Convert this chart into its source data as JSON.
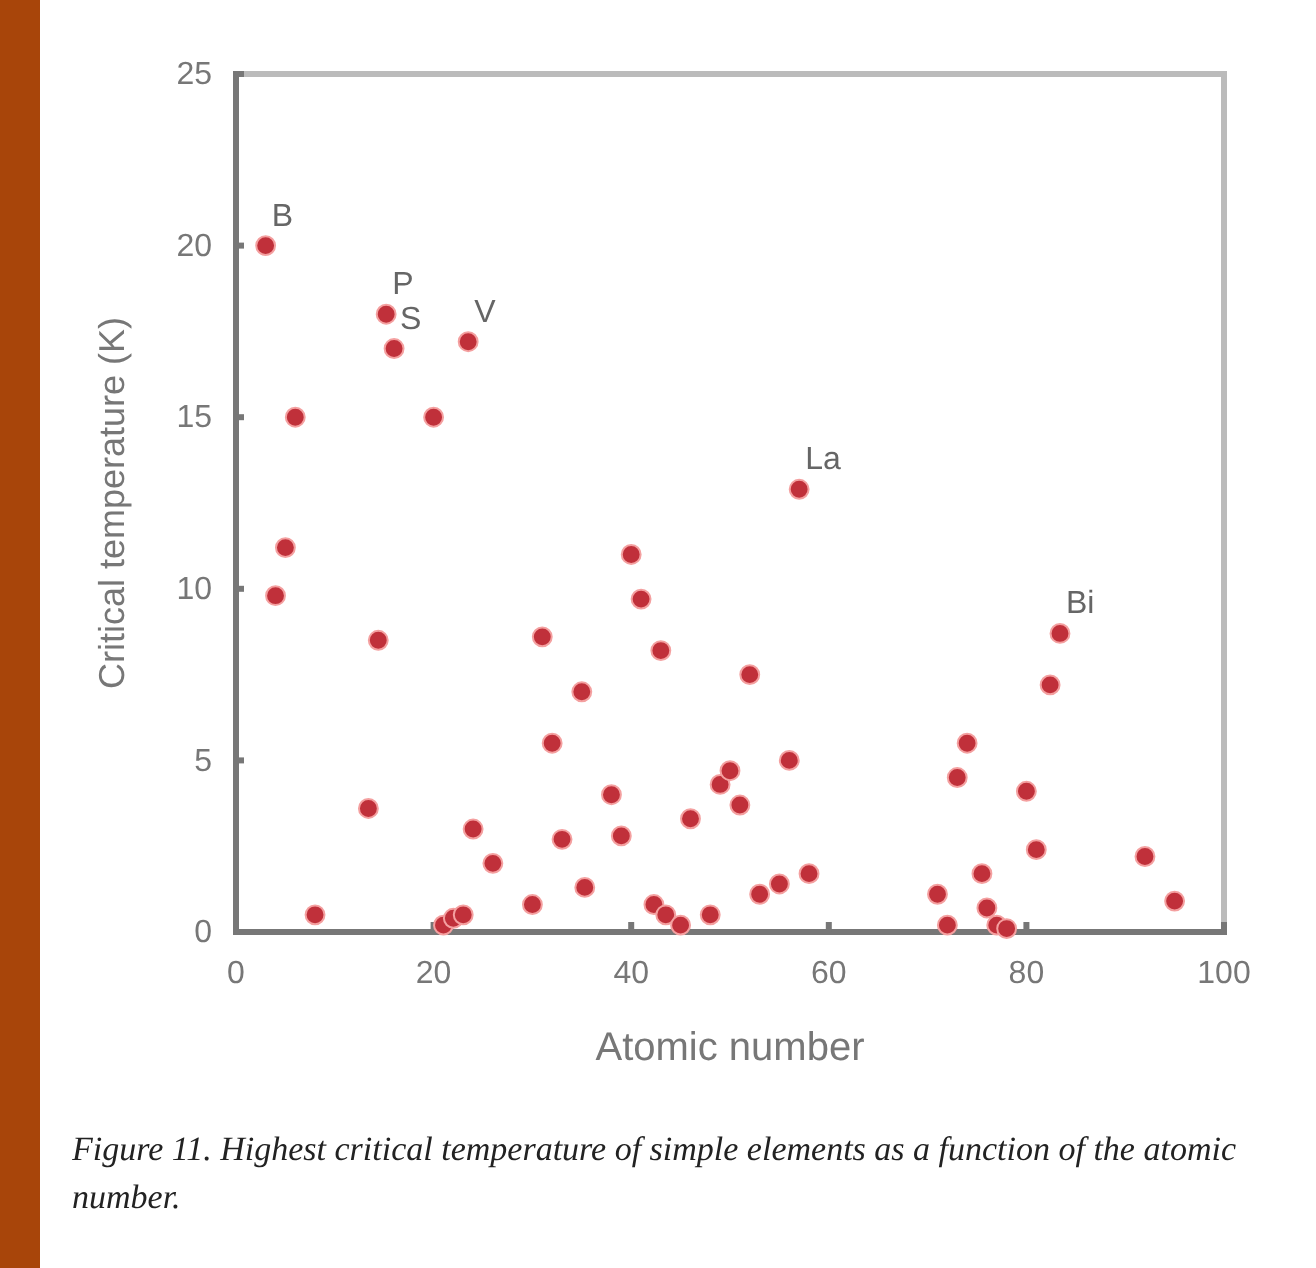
{
  "chart_data": {
    "type": "scatter",
    "xlabel": "Atomic number",
    "ylabel": "Critical temperature (K)",
    "xlim": [
      0,
      100
    ],
    "xticks": [
      0,
      20,
      40,
      60,
      80,
      100
    ],
    "ylim": [
      0,
      25
    ],
    "yticks": [
      0,
      5,
      10,
      15,
      20,
      25
    ],
    "grid": false,
    "marker": "circle",
    "series": [
      {
        "color": "#c0303a",
        "x": [
          3,
          4,
          5,
          6,
          8,
          13.4,
          14.4,
          15.2,
          16,
          20,
          23.5,
          21,
          22,
          23,
          24,
          26,
          30,
          31,
          32,
          33,
          35,
          35.3,
          38,
          39,
          40,
          41,
          43,
          42.3,
          43.5,
          45,
          46,
          48,
          49,
          50,
          51,
          52,
          53,
          55,
          56,
          57,
          58,
          71,
          72,
          73,
          74,
          75.5,
          76,
          77,
          78,
          80,
          81,
          82.4,
          83.4,
          92,
          95
        ],
        "values": [
          20,
          9.8,
          11.2,
          15,
          0.5,
          3.6,
          8.5,
          18,
          17,
          15,
          17.2,
          0.2,
          0.4,
          0.5,
          3,
          2,
          0.8,
          8.6,
          5.5,
          2.7,
          7,
          1.3,
          4,
          2.8,
          11,
          9.7,
          8.2,
          0.8,
          0.5,
          0.2,
          3.3,
          0.5,
          4.3,
          4.7,
          3.7,
          7.5,
          1.1,
          1.4,
          5,
          12.9,
          1.7,
          1.1,
          0.2,
          4.5,
          5.5,
          1.7,
          0.7,
          0.2,
          0.1,
          4.1,
          2.4,
          7.2,
          8.7,
          2.2,
          0.9
        ]
      }
    ],
    "annotations": [
      {
        "text": "B",
        "x": 3,
        "y": 20
      },
      {
        "text": "P",
        "x": 15.2,
        "y": 18
      },
      {
        "text": "S",
        "x": 16,
        "y": 17
      },
      {
        "text": "V",
        "x": 23.5,
        "y": 17.2
      },
      {
        "text": "La",
        "x": 57,
        "y": 12.9
      },
      {
        "text": "Bi",
        "x": 83.4,
        "y": 8.7
      },
      "Figure 11. Highest critical temperature of simple elements as a function of the atomic number."
    ]
  }
}
